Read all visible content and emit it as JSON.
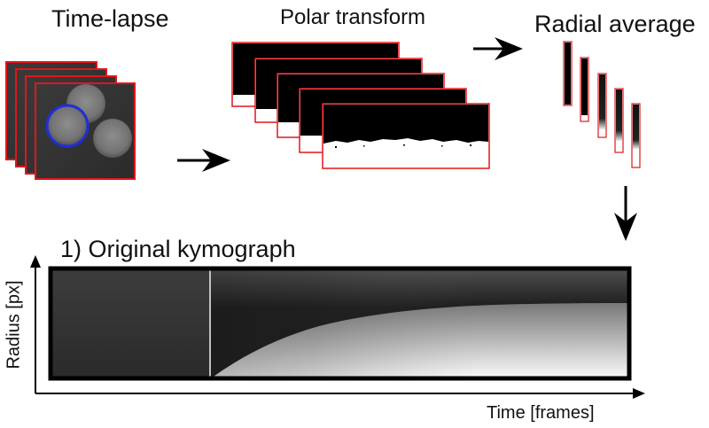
{
  "steps": {
    "timelapse": "Time-lapse",
    "polar": "Polar transform",
    "radial": "Radial average"
  },
  "kymograph": {
    "title": "1) Original kymograph",
    "x_label": "Time [frames]",
    "y_label": "Radius [px]"
  },
  "colors": {
    "frame_border": "#e0161b",
    "circle": "#1f2fd6",
    "arrow": "#000000",
    "kymo_border": "#000000"
  },
  "icons": [
    "right-arrow-icon",
    "down-arrow-icon"
  ]
}
